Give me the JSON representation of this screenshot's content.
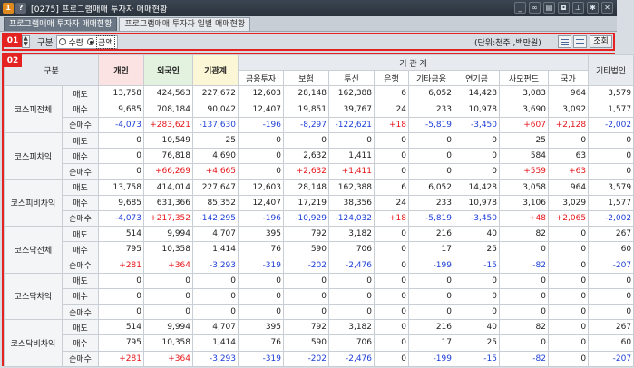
{
  "window": {
    "title": "[0275] 프로그램매매 투자자 매매현황",
    "icons": [
      "app-badge-icon",
      "help-icon",
      "minimize-icon",
      "link-icon",
      "print-icon",
      "camera-icon",
      "pin-icon",
      "settings-icon",
      "close-icon"
    ]
  },
  "tabs": [
    {
      "label": "프로그램매매 투자자 매매현황",
      "active": true
    },
    {
      "label": "프로그램매매 투자자 일별 매매현황",
      "active": false
    }
  ],
  "badges": {
    "one": "01",
    "two": "02"
  },
  "controls": {
    "gubun_label": "구분",
    "radio_qty": "수량",
    "radio_amount": "금액",
    "selected": "금액",
    "unit_text": "(단위:천주 ,백만원)",
    "query_button": "조회"
  },
  "colors": {
    "highlight_border": "#e52222",
    "positive": "#e5161a",
    "negative": "#1d3fd6"
  },
  "table": {
    "header": {
      "gubun": "구분",
      "individual": "개인",
      "foreign": "외국인",
      "institution_total": "기관계",
      "institution_group": "기 관 계",
      "other_corp": "기타법인",
      "sub": [
        "금융투자",
        "보험",
        "투신",
        "은행",
        "기타금융",
        "연기금",
        "사모펀드",
        "국가"
      ]
    },
    "groups": [
      {
        "name": "코스피전체",
        "rows": [
          {
            "label": "매도",
            "values": [
              "13,758",
              "424,563",
              "227,672",
              "12,603",
              "28,148",
              "162,388",
              "6",
              "6,052",
              "14,428",
              "3,083",
              "964",
              "3,579"
            ]
          },
          {
            "label": "매수",
            "values": [
              "9,685",
              "708,184",
              "90,042",
              "12,407",
              "19,851",
              "39,767",
              "24",
              "233",
              "10,978",
              "3,690",
              "3,092",
              "1,577"
            ]
          },
          {
            "label": "순매수",
            "values": [
              "-4,073",
              "+283,621",
              "-137,630",
              "-196",
              "-8,297",
              "-122,621",
              "+18",
              "-5,819",
              "-3,450",
              "+607",
              "+2,128",
              "-2,002"
            ]
          }
        ]
      },
      {
        "name": "코스피차익",
        "rows": [
          {
            "label": "매도",
            "values": [
              "0",
              "10,549",
              "25",
              "0",
              "0",
              "0",
              "0",
              "0",
              "0",
              "25",
              "0",
              "0"
            ]
          },
          {
            "label": "매수",
            "values": [
              "0",
              "76,818",
              "4,690",
              "0",
              "2,632",
              "1,411",
              "0",
              "0",
              "0",
              "584",
              "63",
              "0"
            ]
          },
          {
            "label": "순매수",
            "values": [
              "0",
              "+66,269",
              "+4,665",
              "0",
              "+2,632",
              "+1,411",
              "0",
              "0",
              "0",
              "+559",
              "+63",
              "0"
            ]
          }
        ]
      },
      {
        "name": "코스피비차익",
        "rows": [
          {
            "label": "매도",
            "values": [
              "13,758",
              "414,014",
              "227,647",
              "12,603",
              "28,148",
              "162,388",
              "6",
              "6,052",
              "14,428",
              "3,058",
              "964",
              "3,579"
            ]
          },
          {
            "label": "매수",
            "values": [
              "9,685",
              "631,366",
              "85,352",
              "12,407",
              "17,219",
              "38,356",
              "24",
              "233",
              "10,978",
              "3,106",
              "3,029",
              "1,577"
            ]
          },
          {
            "label": "순매수",
            "values": [
              "-4,073",
              "+217,352",
              "-142,295",
              "-196",
              "-10,929",
              "-124,032",
              "+18",
              "-5,819",
              "-3,450",
              "+48",
              "+2,065",
              "-2,002"
            ]
          }
        ]
      },
      {
        "name": "코스닥전체",
        "rows": [
          {
            "label": "매도",
            "values": [
              "514",
              "9,994",
              "4,707",
              "395",
              "792",
              "3,182",
              "0",
              "216",
              "40",
              "82",
              "0",
              "267"
            ]
          },
          {
            "label": "매수",
            "values": [
              "795",
              "10,358",
              "1,414",
              "76",
              "590",
              "706",
              "0",
              "17",
              "25",
              "0",
              "0",
              "60"
            ]
          },
          {
            "label": "순매수",
            "values": [
              "+281",
              "+364",
              "-3,293",
              "-319",
              "-202",
              "-2,476",
              "0",
              "-199",
              "-15",
              "-82",
              "0",
              "-207"
            ]
          }
        ]
      },
      {
        "name": "코스닥차익",
        "rows": [
          {
            "label": "매도",
            "values": [
              "0",
              "0",
              "0",
              "0",
              "0",
              "0",
              "0",
              "0",
              "0",
              "0",
              "0",
              "0"
            ]
          },
          {
            "label": "매수",
            "values": [
              "0",
              "0",
              "0",
              "0",
              "0",
              "0",
              "0",
              "0",
              "0",
              "0",
              "0",
              "0"
            ]
          },
          {
            "label": "순매수",
            "values": [
              "0",
              "0",
              "0",
              "0",
              "0",
              "0",
              "0",
              "0",
              "0",
              "0",
              "0",
              "0"
            ]
          }
        ]
      },
      {
        "name": "코스닥비차익",
        "rows": [
          {
            "label": "매도",
            "values": [
              "514",
              "9,994",
              "4,707",
              "395",
              "792",
              "3,182",
              "0",
              "216",
              "40",
              "82",
              "0",
              "267"
            ]
          },
          {
            "label": "매수",
            "values": [
              "795",
              "10,358",
              "1,414",
              "76",
              "590",
              "706",
              "0",
              "17",
              "25",
              "0",
              "0",
              "60"
            ]
          },
          {
            "label": "순매수",
            "values": [
              "+281",
              "+364",
              "-3,293",
              "-319",
              "-202",
              "-2,476",
              "0",
              "-199",
              "-15",
              "-82",
              "0",
              "-207"
            ]
          }
        ]
      }
    ]
  }
}
